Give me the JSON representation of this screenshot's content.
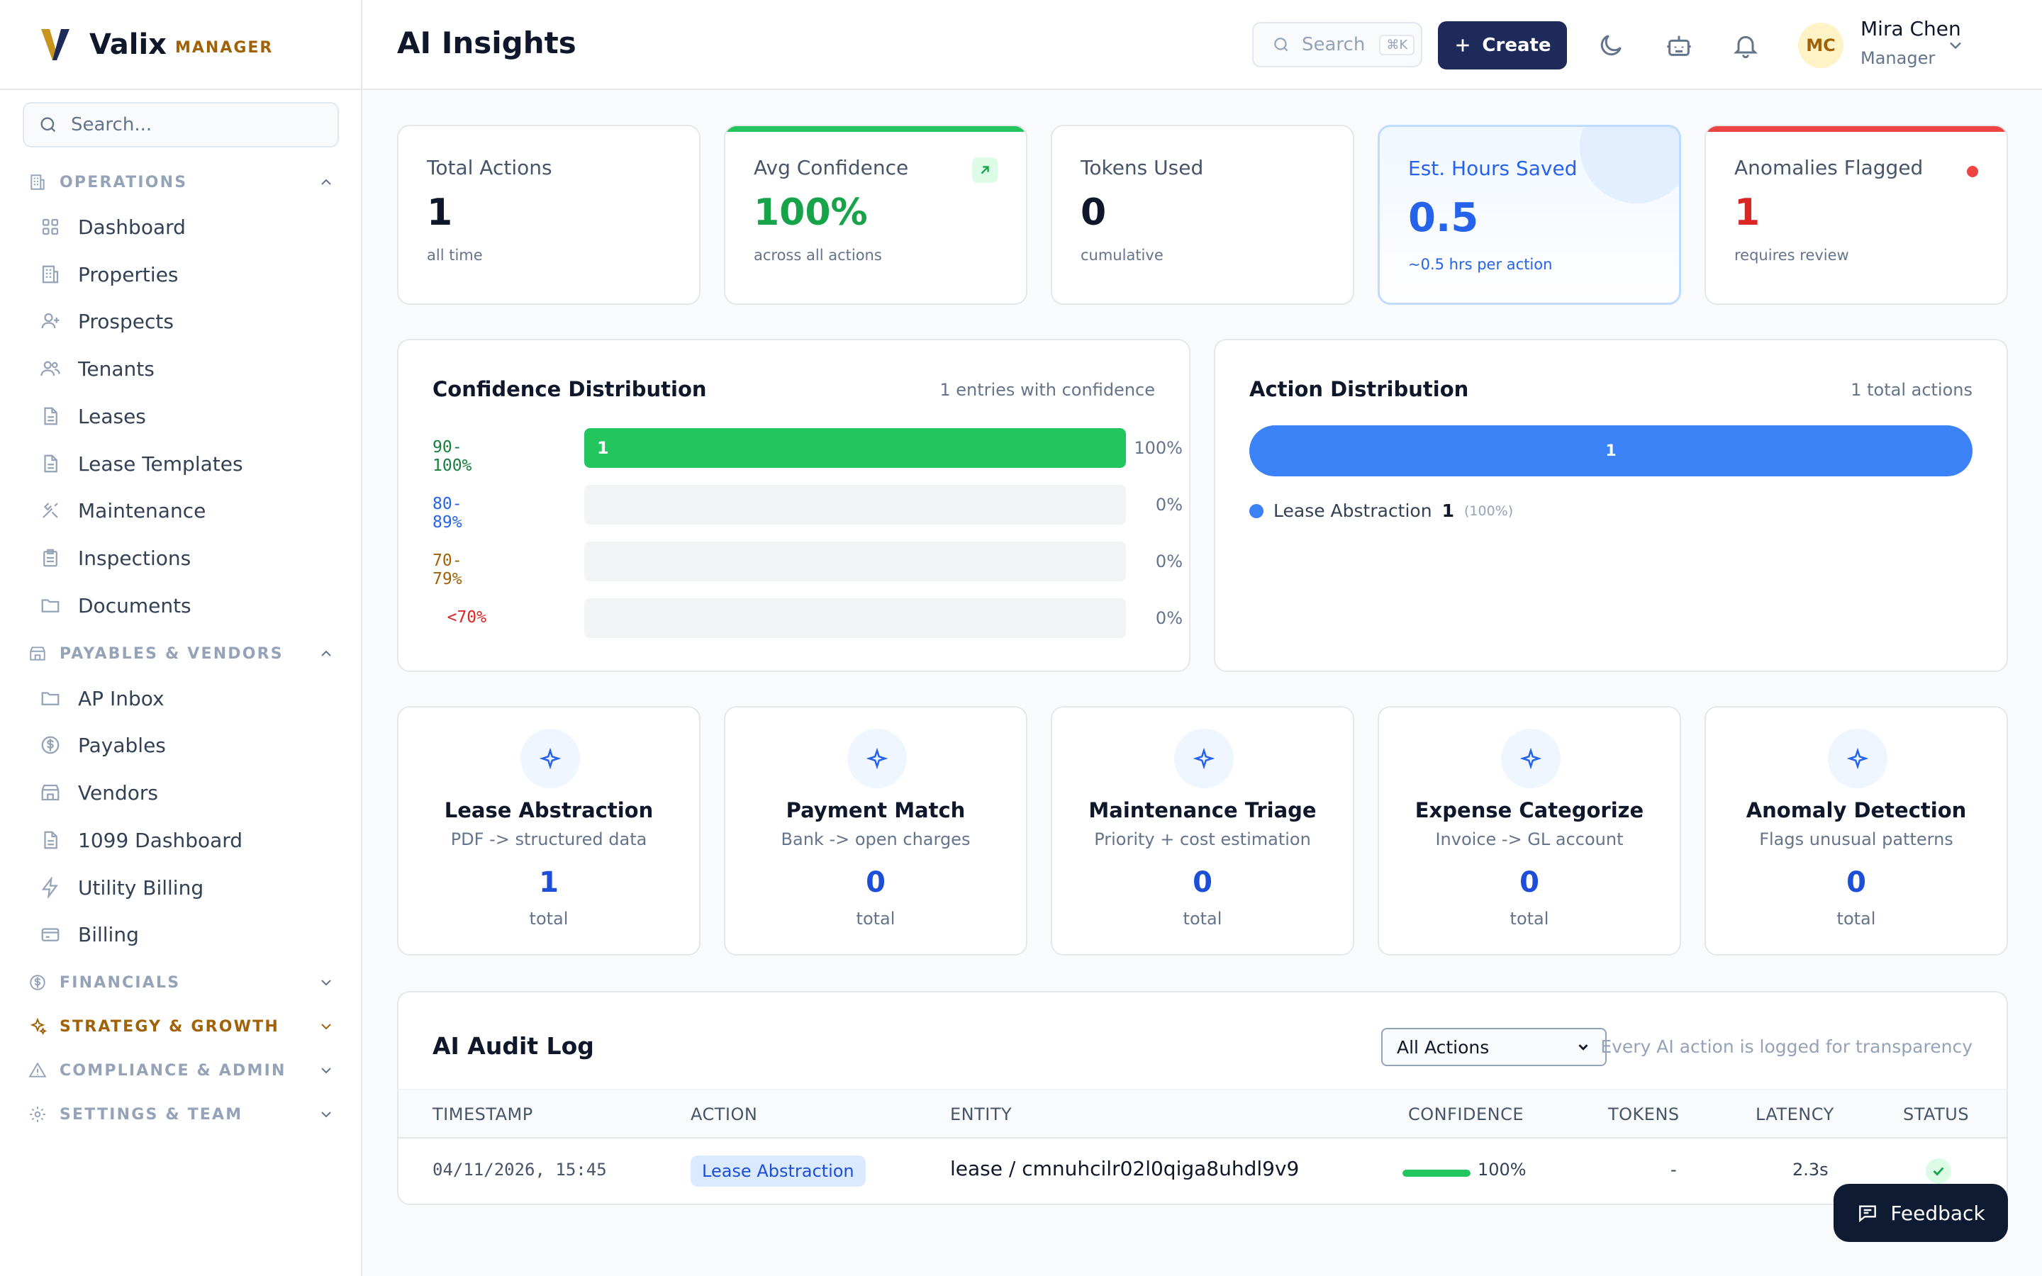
{
  "brand": {
    "name": "Valix",
    "tag": "MANAGER"
  },
  "sidebar": {
    "search_placeholder": "Search...",
    "sections": {
      "operations": "OPERATIONS",
      "payables": "PAYABLES & VENDORS",
      "financials": "FINANCIALS",
      "strategy": "STRATEGY & GROWTH",
      "compliance": "COMPLIANCE & ADMIN",
      "settings": "SETTINGS & TEAM"
    },
    "operations_items": [
      "Dashboard",
      "Properties",
      "Prospects",
      "Tenants",
      "Leases",
      "Lease Templates",
      "Maintenance",
      "Inspections",
      "Documents"
    ],
    "payables_items": [
      "AP Inbox",
      "Payables",
      "Vendors",
      "1099 Dashboard",
      "Utility Billing",
      "Billing"
    ]
  },
  "header": {
    "title": "AI Insights",
    "search_label": "Search",
    "search_shortcut": "⌘K",
    "create_label": "Create",
    "user": {
      "initials": "MC",
      "name": "Mira Chen",
      "role": "Manager"
    }
  },
  "stats": [
    {
      "label": "Total Actions",
      "value": "1",
      "sub": "all time"
    },
    {
      "label": "Avg Confidence",
      "value": "100%",
      "sub": "across all actions"
    },
    {
      "label": "Tokens Used",
      "value": "0",
      "sub": "cumulative"
    },
    {
      "label": "Est. Hours Saved",
      "value": "0.5",
      "sub": "~0.5 hrs per action"
    },
    {
      "label": "Anomalies Flagged",
      "value": "1",
      "sub": "requires review"
    }
  ],
  "confidence_distribution": {
    "title": "Confidence Distribution",
    "meta": "1 entries with confidence",
    "rows": [
      {
        "label": "90-100%",
        "count": "1",
        "pct": "100%",
        "fraction": 1.0,
        "color": "#15803d"
      },
      {
        "label": "80-89%",
        "count": "",
        "pct": "0%",
        "fraction": 0,
        "color": "#2563eb"
      },
      {
        "label": "70-79%",
        "count": "",
        "pct": "0%",
        "fraction": 0,
        "color": "#a16207"
      },
      {
        "label": "<70%",
        "count": "",
        "pct": "0%",
        "fraction": 0,
        "color": "#dc2626"
      }
    ]
  },
  "action_distribution": {
    "title": "Action Distribution",
    "meta": "1 total actions",
    "bar_value": "1",
    "legend": {
      "name": "Lease Abstraction",
      "count": "1",
      "pct": "(100%)"
    }
  },
  "features": [
    {
      "title": "Lease Abstraction",
      "sub": "PDF -> structured data",
      "count": "1",
      "unit": "total"
    },
    {
      "title": "Payment Match",
      "sub": "Bank -> open charges",
      "count": "0",
      "unit": "total"
    },
    {
      "title": "Maintenance Triage",
      "sub": "Priority + cost estimation",
      "count": "0",
      "unit": "total"
    },
    {
      "title": "Expense Categorize",
      "sub": "Invoice -> GL account",
      "count": "0",
      "unit": "total"
    },
    {
      "title": "Anomaly Detection",
      "sub": "Flags unusual patterns",
      "count": "0",
      "unit": "total"
    }
  ],
  "audit": {
    "title": "AI Audit Log",
    "filter": "All Actions",
    "note": "Every AI action is logged for transparency",
    "columns": [
      "TIMESTAMP",
      "ACTION",
      "ENTITY",
      "CONFIDENCE",
      "TOKENS",
      "LATENCY",
      "STATUS"
    ],
    "rows": [
      {
        "timestamp": "04/11/2026, 15:45",
        "action": "Lease Abstraction",
        "entity": "lease / cmnuhcilr02l0qiga8uhdl9v9",
        "confidence": "100%",
        "confidence_fraction": 1.0,
        "tokens": "-",
        "latency": "2.3s"
      }
    ]
  },
  "feedback_label": "Feedback"
}
